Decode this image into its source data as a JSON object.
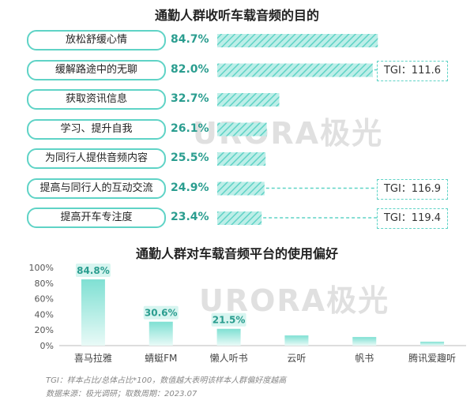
{
  "title1": "通勤人群收听车载音频的目的",
  "title2": "通勤人群对车载音频平台的使用偏好",
  "watermark": "URORA极光",
  "colors": {
    "accent": "#5fd3c6",
    "accent_dark": "#2a9d8f",
    "bar_fill": "#7fe0d3"
  },
  "chart_data": [
    {
      "type": "bar",
      "orientation": "horizontal",
      "title": "通勤人群收听车载音频的目的",
      "categories": [
        "放松舒缓心情",
        "缓解路途中的无聊",
        "获取资讯信息",
        "学习、提升自我",
        "为同行人提供音频内容",
        "提高与同行人的互动交流",
        "提高开车专注度"
      ],
      "values": [
        84.7,
        82.0,
        32.7,
        26.1,
        25.5,
        24.9,
        23.4
      ],
      "value_labels": [
        "84.7%",
        "82.0%",
        "32.7%",
        "26.1%",
        "25.5%",
        "24.9%",
        "23.4%"
      ],
      "tgi": [
        null,
        "TGI：111.6",
        null,
        null,
        null,
        "TGI：116.9",
        "TGI：119.4"
      ]
    },
    {
      "type": "bar",
      "title": "通勤人群对车载音频平台的使用偏好",
      "categories": [
        "喜马拉雅",
        "蜻蜓FM",
        "懒人听书",
        "云听",
        "帆书",
        "腾讯爱趣听"
      ],
      "values": [
        84.8,
        30.6,
        21.5,
        13.0,
        11.0,
        5.0
      ],
      "data_labels": [
        "84.8%",
        "30.6%",
        "21.5%",
        "",
        "",
        ""
      ],
      "yticks": [
        "100%",
        "80%",
        "60%",
        "40%",
        "20%",
        "0%"
      ],
      "ylim": [
        0,
        100
      ]
    }
  ],
  "footnotes": [
    "TGI：样本占比/总体占比*100，数值越大表明该样本人群偏好度越高",
    "数据来源：极光调研；取数周期：2023.07"
  ]
}
